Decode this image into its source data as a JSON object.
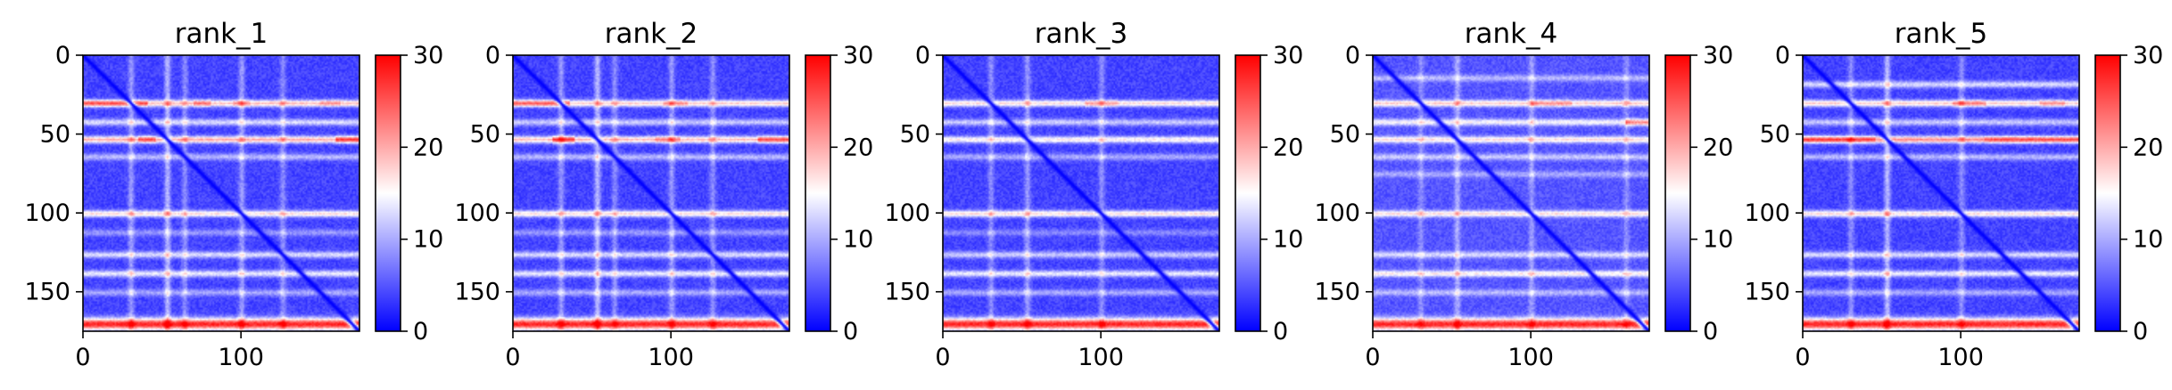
{
  "chart_data": [
    {
      "type": "heatmap",
      "title": "rank_1",
      "xlabel": "",
      "ylabel": "",
      "x_ticks": [
        0,
        100
      ],
      "y_ticks": [
        0,
        50,
        100,
        150
      ],
      "xlim": [
        0,
        175
      ],
      "ylim": [
        175,
        0
      ],
      "colorbar": {
        "cmap": "bwr",
        "vmin": 0,
        "vmax": 30,
        "ticks": [
          0,
          10,
          20,
          30
        ]
      },
      "diagonal_value": 0,
      "background_value": 4,
      "row_bands": [
        {
          "position": 30,
          "value": 19,
          "hot_segments": [
            [
              0,
              40,
              26
            ],
            [
              70,
              80,
              24
            ],
            [
              95,
              105,
              22
            ],
            [
              150,
              162,
              22
            ]
          ]
        },
        {
          "position": 42,
          "value": 13,
          "hot_segments": []
        },
        {
          "position": 53,
          "value": 20,
          "hot_segments": [
            [
              35,
              45,
              26
            ],
            [
              160,
              175,
              27
            ]
          ]
        },
        {
          "position": 64,
          "value": 11,
          "hot_segments": []
        },
        {
          "position": 100,
          "value": 17,
          "hot_segments": []
        },
        {
          "position": 112,
          "value": 9,
          "hot_segments": []
        },
        {
          "position": 126,
          "value": 13,
          "hot_segments": []
        },
        {
          "position": 138,
          "value": 14,
          "hot_segments": []
        },
        {
          "position": 150,
          "value": 10,
          "hot_segments": []
        },
        {
          "position": 170,
          "value": 28,
          "hot_segments": []
        }
      ],
      "col_bands": [
        {
          "position": 30,
          "value": 10
        },
        {
          "position": 53,
          "value": 12
        },
        {
          "position": 64,
          "value": 9
        },
        {
          "position": 100,
          "value": 10
        },
        {
          "position": 126,
          "value": 9
        }
      ]
    },
    {
      "type": "heatmap",
      "title": "rank_2",
      "xlabel": "",
      "ylabel": "",
      "x_ticks": [
        0,
        100
      ],
      "y_ticks": [
        0,
        50,
        100,
        150
      ],
      "xlim": [
        0,
        175
      ],
      "ylim": [
        175,
        0
      ],
      "colorbar": {
        "cmap": "bwr",
        "vmin": 0,
        "vmax": 30,
        "ticks": [
          0,
          10,
          20,
          30
        ]
      },
      "diagonal_value": 0,
      "background_value": 4,
      "row_bands": [
        {
          "position": 30,
          "value": 18,
          "hot_segments": [
            [
              0,
              35,
              25
            ],
            [
              95,
              110,
              22
            ]
          ]
        },
        {
          "position": 42,
          "value": 12,
          "hot_segments": []
        },
        {
          "position": 53,
          "value": 19,
          "hot_segments": [
            [
              25,
              38,
              27
            ],
            [
              90,
              105,
              23
            ],
            [
              155,
              175,
              26
            ]
          ]
        },
        {
          "position": 64,
          "value": 11,
          "hot_segments": []
        },
        {
          "position": 100,
          "value": 17,
          "hot_segments": []
        },
        {
          "position": 112,
          "value": 9,
          "hot_segments": []
        },
        {
          "position": 126,
          "value": 13,
          "hot_segments": []
        },
        {
          "position": 138,
          "value": 14,
          "hot_segments": []
        },
        {
          "position": 150,
          "value": 10,
          "hot_segments": []
        },
        {
          "position": 170,
          "value": 28,
          "hot_segments": []
        }
      ],
      "col_bands": [
        {
          "position": 30,
          "value": 10
        },
        {
          "position": 53,
          "value": 12
        },
        {
          "position": 64,
          "value": 9
        },
        {
          "position": 100,
          "value": 10
        },
        {
          "position": 126,
          "value": 9
        }
      ]
    },
    {
      "type": "heatmap",
      "title": "rank_3",
      "xlabel": "",
      "ylabel": "",
      "x_ticks": [
        0,
        100
      ],
      "y_ticks": [
        0,
        50,
        100,
        150
      ],
      "xlim": [
        0,
        175
      ],
      "ylim": [
        175,
        0
      ],
      "colorbar": {
        "cmap": "bwr",
        "vmin": 0,
        "vmax": 30,
        "ticks": [
          0,
          10,
          20,
          30
        ]
      },
      "diagonal_value": 0,
      "background_value": 4,
      "row_bands": [
        {
          "position": 30,
          "value": 17,
          "hot_segments": [
            [
              90,
              110,
              21
            ]
          ]
        },
        {
          "position": 42,
          "value": 12,
          "hot_segments": []
        },
        {
          "position": 53,
          "value": 16,
          "hot_segments": []
        },
        {
          "position": 64,
          "value": 10,
          "hot_segments": []
        },
        {
          "position": 100,
          "value": 17,
          "hot_segments": []
        },
        {
          "position": 112,
          "value": 8,
          "hot_segments": []
        },
        {
          "position": 126,
          "value": 12,
          "hot_segments": []
        },
        {
          "position": 138,
          "value": 14,
          "hot_segments": []
        },
        {
          "position": 150,
          "value": 10,
          "hot_segments": []
        },
        {
          "position": 170,
          "value": 28,
          "hot_segments": []
        }
      ],
      "col_bands": [
        {
          "position": 30,
          "value": 9
        },
        {
          "position": 53,
          "value": 10
        },
        {
          "position": 100,
          "value": 9
        }
      ]
    },
    {
      "type": "heatmap",
      "title": "rank_4",
      "xlabel": "",
      "ylabel": "",
      "x_ticks": [
        0,
        100
      ],
      "y_ticks": [
        0,
        50,
        100,
        150
      ],
      "xlim": [
        0,
        175
      ],
      "ylim": [
        175,
        0
      ],
      "colorbar": {
        "cmap": "bwr",
        "vmin": 0,
        "vmax": 30,
        "ticks": [
          0,
          10,
          20,
          30
        ]
      },
      "diagonal_value": 0,
      "background_value": 5,
      "row_bands": [
        {
          "position": 14,
          "value": 11,
          "hot_segments": []
        },
        {
          "position": 30,
          "value": 18,
          "hot_segments": [
            [
              100,
              125,
              22
            ]
          ]
        },
        {
          "position": 42,
          "value": 15,
          "hot_segments": [
            [
              160,
              175,
              22
            ]
          ]
        },
        {
          "position": 53,
          "value": 17,
          "hot_segments": []
        },
        {
          "position": 64,
          "value": 12,
          "hot_segments": []
        },
        {
          "position": 75,
          "value": 10,
          "hot_segments": []
        },
        {
          "position": 100,
          "value": 17,
          "hot_segments": []
        },
        {
          "position": 126,
          "value": 13,
          "hot_segments": []
        },
        {
          "position": 138,
          "value": 16,
          "hot_segments": []
        },
        {
          "position": 150,
          "value": 11,
          "hot_segments": []
        },
        {
          "position": 170,
          "value": 28,
          "hot_segments": []
        }
      ],
      "col_bands": [
        {
          "position": 30,
          "value": 9
        },
        {
          "position": 53,
          "value": 11
        },
        {
          "position": 100,
          "value": 10
        },
        {
          "position": 160,
          "value": 9
        }
      ]
    },
    {
      "type": "heatmap",
      "title": "rank_5",
      "xlabel": "",
      "ylabel": "",
      "x_ticks": [
        0,
        100
      ],
      "y_ticks": [
        0,
        50,
        100,
        150
      ],
      "xlim": [
        0,
        175
      ],
      "ylim": [
        175,
        0
      ],
      "colorbar": {
        "cmap": "bwr",
        "vmin": 0,
        "vmax": 30,
        "ticks": [
          0,
          10,
          20,
          30
        ]
      },
      "diagonal_value": 0,
      "background_value": 4,
      "row_bands": [
        {
          "position": 18,
          "value": 13,
          "hot_segments": []
        },
        {
          "position": 30,
          "value": 18,
          "hot_segments": [
            [
              95,
              115,
              23
            ],
            [
              150,
              165,
              22
            ]
          ]
        },
        {
          "position": 42,
          "value": 12,
          "hot_segments": []
        },
        {
          "position": 53,
          "value": 22,
          "hot_segments": [
            [
              0,
              45,
              27
            ],
            [
              115,
              175,
              26
            ]
          ]
        },
        {
          "position": 64,
          "value": 11,
          "hot_segments": []
        },
        {
          "position": 100,
          "value": 17,
          "hot_segments": []
        },
        {
          "position": 126,
          "value": 13,
          "hot_segments": []
        },
        {
          "position": 138,
          "value": 14,
          "hot_segments": []
        },
        {
          "position": 150,
          "value": 10,
          "hot_segments": []
        },
        {
          "position": 170,
          "value": 28,
          "hot_segments": []
        }
      ],
      "col_bands": [
        {
          "position": 30,
          "value": 9
        },
        {
          "position": 53,
          "value": 12
        },
        {
          "position": 100,
          "value": 9
        }
      ]
    }
  ]
}
